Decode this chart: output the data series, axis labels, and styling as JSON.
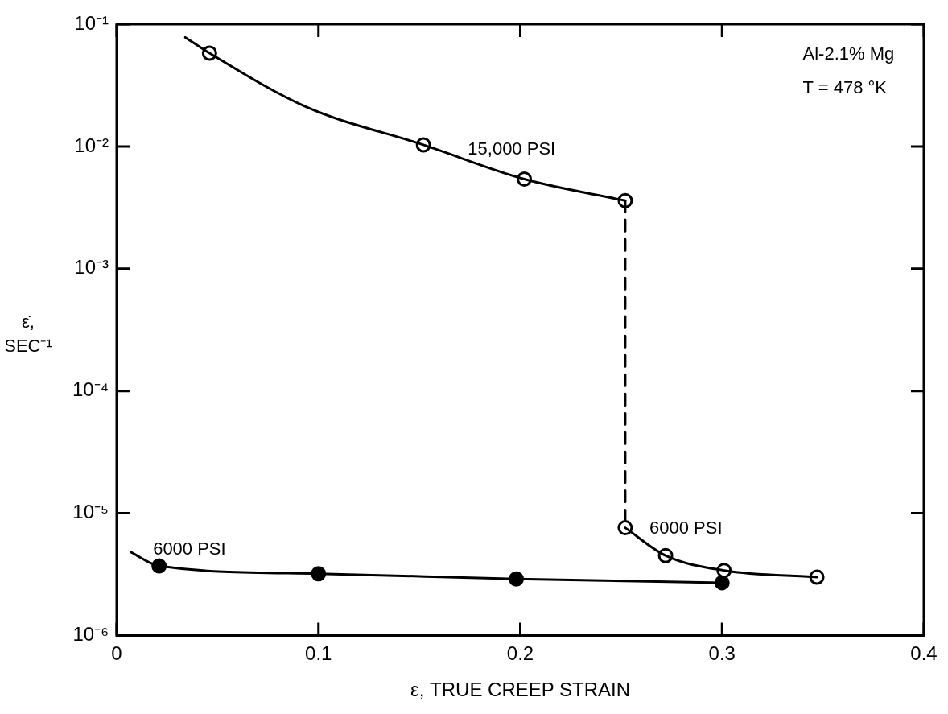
{
  "chart_data": {
    "type": "scatter",
    "xlabel": "ε, TRUE CREEP STRAIN",
    "ylabel": "ε̇, SEC⁻¹",
    "log": "y",
    "xlim": [
      0,
      0.4
    ],
    "xticks": [
      0,
      0.1,
      0.2,
      0.3,
      0.4
    ],
    "ylim": [
      1e-06,
      0.1
    ],
    "yticks": [
      {
        "value": 1e-06,
        "label": "10⁻⁶"
      },
      {
        "value": 1e-05,
        "label": "10⁻⁵"
      },
      {
        "value": 0.0001,
        "label": "10⁻⁴"
      },
      {
        "value": 0.001,
        "label": "10⁻³"
      },
      {
        "value": 0.01,
        "label": "10⁻²"
      },
      {
        "value": 0.1,
        "label": "10⁻¹"
      }
    ],
    "grid": false,
    "legend": false,
    "marker": "circle",
    "series": [
      {
        "type": "line",
        "marker": "none",
        "color": "#000000",
        "x": [
          0.034,
          0.046,
          0.094,
          0.152,
          0.202,
          0.252
        ],
        "values": [
          0.078,
          0.058,
          0.021,
          0.0103,
          0.0054,
          0.0036
        ]
      },
      {
        "type": "line",
        "marker": "none",
        "line_style": "dashed",
        "color": "#000000",
        "x": [
          0.252,
          0.252
        ],
        "values": [
          0.0036,
          7.6e-06
        ]
      },
      {
        "type": "line",
        "marker": "none",
        "color": "#000000",
        "x": [
          0.252,
          0.272,
          0.301,
          0.347
        ],
        "values": [
          7.6e-06,
          4.5e-06,
          3.4e-06,
          3e-06
        ]
      },
      {
        "type": "line",
        "marker": "none",
        "color": "#000000",
        "x": [
          0.007,
          0.021,
          0.1,
          0.198,
          0.3
        ],
        "values": [
          4.8e-06,
          3.7e-06,
          3.2e-06,
          2.9e-06,
          2.7e-06
        ]
      },
      {
        "type": "scatter",
        "color": "#ffffff",
        "x": [
          0.046,
          0.152,
          0.202,
          0.252
        ],
        "values": [
          0.058,
          0.0103,
          0.0054,
          0.0036
        ]
      },
      {
        "type": "scatter",
        "color": "#ffffff",
        "x": [
          0.252,
          0.272,
          0.301,
          0.347
        ],
        "values": [
          7.6e-06,
          4.5e-06,
          3.4e-06,
          3e-06
        ]
      },
      {
        "type": "scatter",
        "color": "#000000",
        "x": [
          0.021,
          0.1,
          0.198,
          0.3
        ],
        "values": [
          3.7e-06,
          3.2e-06,
          2.9e-06,
          2.7e-06
        ]
      }
    ],
    "annotations": [
      "15,000 PSI",
      "6000 PSI",
      "6000 PSI",
      "Al-2.1% Mg",
      "T = 478 °K"
    ]
  }
}
